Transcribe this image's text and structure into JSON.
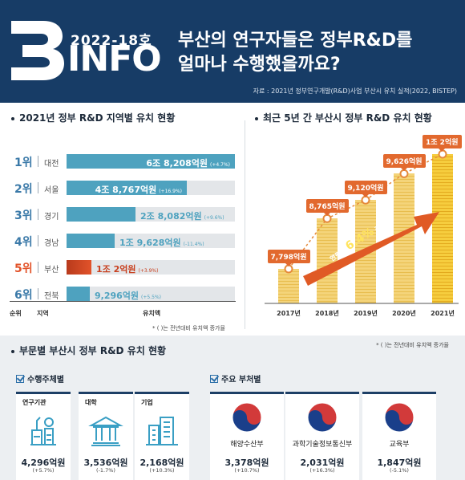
{
  "header": {
    "logo_letter": "B",
    "issue": "2022-18호",
    "info_word": "INFO",
    "headline_line1": "부산의 연구자들은 정부R&D를",
    "headline_line2": "얼마나 수행했을까요?",
    "source": "자료 : 2021년 정부연구개발(R&D)사업 부산시 유치 실적(2022, BISTEP)",
    "bg_color": "#173c66"
  },
  "regional": {
    "title": "2021년 정부 R&D 지역별 유치 현황",
    "axis_rank": "순위",
    "axis_region": "지역",
    "axis_amount": "유치액",
    "note": "* ( )는 전년대비 유치액 증가율",
    "highlight_color": "#e2532a",
    "base_color": "#4ea2bf",
    "rows": [
      {
        "rank": "1위",
        "region": "대전",
        "amount": "6조 8,208억원",
        "change": "(+4.7%)",
        "value": 68208,
        "highlight": false
      },
      {
        "rank": "2위",
        "region": "서울",
        "amount": "4조 8,767억원",
        "change": "(+16.9%)",
        "value": 48767,
        "highlight": false
      },
      {
        "rank": "3위",
        "region": "경기",
        "amount": "2조 8,082억원",
        "change": "(+9.6%)",
        "value": 28082,
        "highlight": false
      },
      {
        "rank": "4위",
        "region": "경남",
        "amount": "1조 9,628억원",
        "change": "(-11.4%)",
        "value": 19628,
        "highlight": false
      },
      {
        "rank": "5위",
        "region": "부산",
        "amount": "1조 2억원",
        "change": "(+3.9%)",
        "value": 10002,
        "highlight": true
      },
      {
        "rank": "6위",
        "region": "전북",
        "amount": "9,296억원",
        "change": "(+5.5%)",
        "value": 9296,
        "highlight": false
      }
    ]
  },
  "chart_data": {
    "type": "bar",
    "title": "최근 5년 간 부산시 정부 R&D 유치 현황",
    "categories": [
      "2017년",
      "2018년",
      "2019년",
      "2020년",
      "2021년"
    ],
    "values": [
      7798,
      8765,
      9120,
      9626,
      10002
    ],
    "labels": [
      "7,798억원",
      "8,765억원",
      "9,120억원",
      "9,626억원",
      "1조 2억원"
    ],
    "growth_text_pre": "연평균",
    "growth_rate": "6.4%",
    "growth_text_post": "증가"
  },
  "sector": {
    "title": "부문별 부산시 정부 R&D 유치 현황",
    "note": "* ( )는 전년대비 유치액 증가율",
    "performers_title": "수행주체별",
    "ministries_title": "주요 부처별",
    "performers": [
      {
        "name": "연구기관",
        "amount": "4,296억원",
        "change": "(+5.7%)",
        "icon": "lab-flask-icon"
      },
      {
        "name": "대학",
        "amount": "3,536억원",
        "change": "(-1.7%)",
        "icon": "university-building-icon"
      },
      {
        "name": "기업",
        "amount": "2,168억원",
        "change": "(+10.3%)",
        "icon": "office-building-icon"
      }
    ],
    "ministries": [
      {
        "name": "해양수산부",
        "amount": "3,378억원",
        "change": "(+10.7%)",
        "icon": "taegeuk-emblem-icon"
      },
      {
        "name": "과학기술정보통신부",
        "amount": "2,031억원",
        "change": "(+16.3%)",
        "icon": "taegeuk-emblem-icon"
      },
      {
        "name": "교육부",
        "amount": "1,847억원",
        "change": "(-5.1%)",
        "icon": "taegeuk-emblem-icon"
      }
    ]
  }
}
